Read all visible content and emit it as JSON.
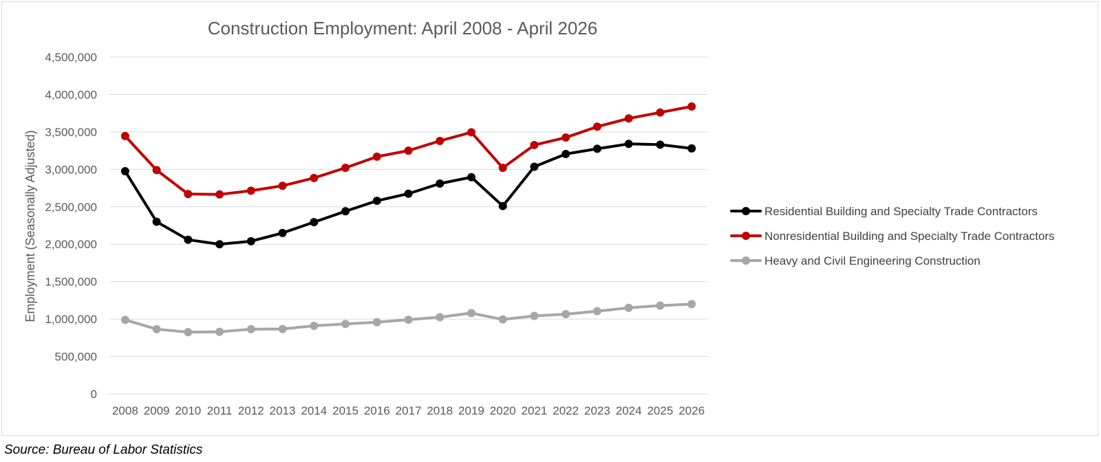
{
  "chart_data": {
    "type": "line",
    "title": "Construction Employment: April 2008 - April 2026",
    "xlabel": "",
    "ylabel": "Employment (Seasonally Adjusted)",
    "ylim": [
      0,
      4500000
    ],
    "y_ticks": [
      0,
      500000,
      1000000,
      1500000,
      2000000,
      2500000,
      3000000,
      3500000,
      4000000,
      4500000
    ],
    "y_tick_labels": [
      "0",
      "500,000",
      "1,000,000",
      "1,500,000",
      "2,000,000",
      "2,500,000",
      "3,000,000",
      "3,500,000",
      "4,000,000",
      "4,500,000"
    ],
    "categories": [
      "2008",
      "2009",
      "2010",
      "2011",
      "2012",
      "2013",
      "2014",
      "2015",
      "2016",
      "2017",
      "2018",
      "2019",
      "2020",
      "2021",
      "2022",
      "2023",
      "2024",
      "2025",
      "2026"
    ],
    "grid": "horizontal",
    "legend_position": "right",
    "series": [
      {
        "name": "Residential Building and Specialty Trade Contractors",
        "color": "#000000",
        "values": [
          2975000,
          2300000,
          2060000,
          2000000,
          2040000,
          2150000,
          2295000,
          2440000,
          2580000,
          2675000,
          2810000,
          2895000,
          2510000,
          3035000,
          3205000,
          3275000,
          3340000,
          3330000,
          3280000
        ]
      },
      {
        "name": "Nonresidential Building and Specialty Trade Contractors",
        "color": "#c00000",
        "values": [
          3445000,
          2990000,
          2670000,
          2665000,
          2715000,
          2780000,
          2885000,
          3020000,
          3170000,
          3250000,
          3380000,
          3495000,
          3020000,
          3325000,
          3425000,
          3570000,
          3680000,
          3760000,
          3840000
        ]
      },
      {
        "name": "Heavy and Civil Engineering Construction",
        "color": "#a6a6a6",
        "values": [
          990000,
          865000,
          825000,
          830000,
          865000,
          868000,
          910000,
          935000,
          958000,
          992000,
          1025000,
          1080000,
          995000,
          1042000,
          1065000,
          1105000,
          1150000,
          1180000,
          1200000
        ]
      }
    ]
  },
  "source_note": "Source: Bureau of Labor Statistics"
}
